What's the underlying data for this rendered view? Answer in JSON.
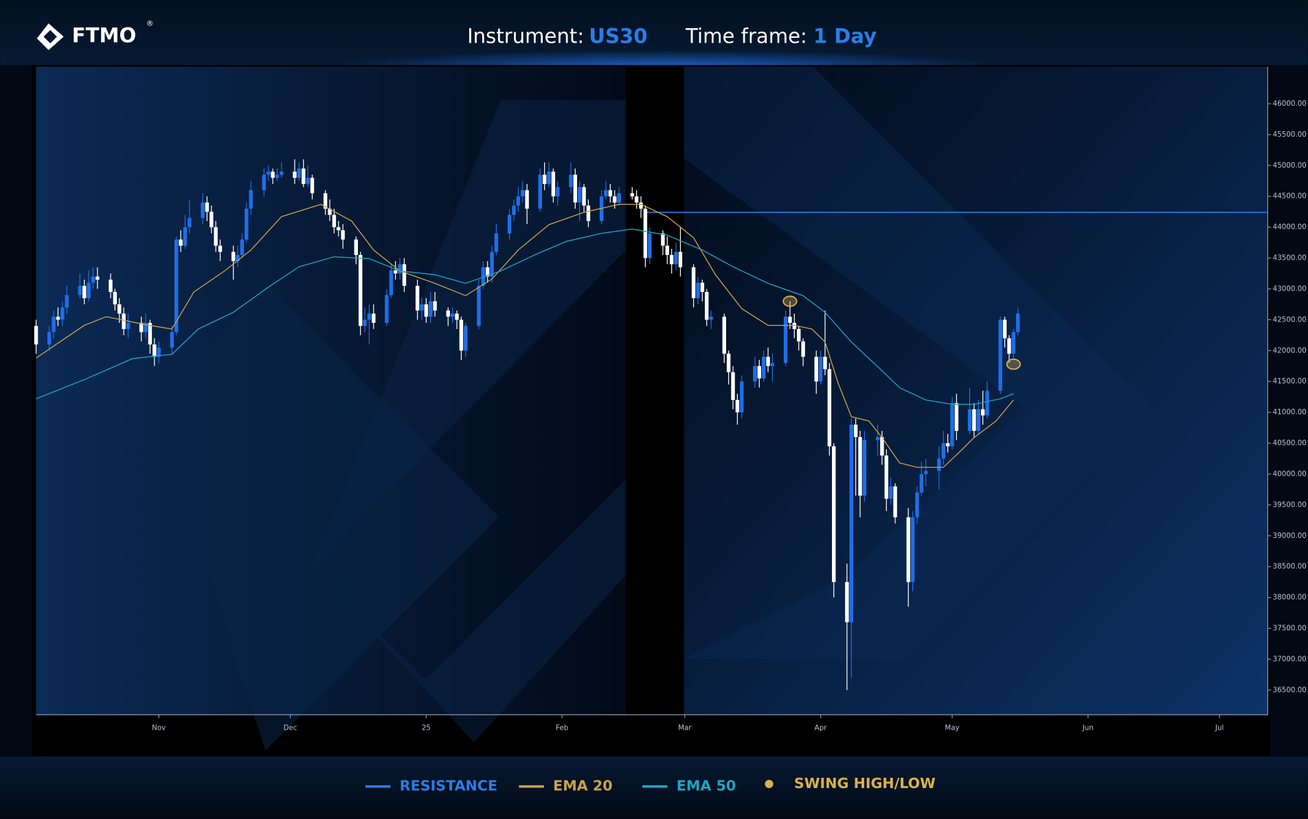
{
  "header": {
    "brand": "FTMO",
    "registered": "®",
    "instrument_label": "Instrument:",
    "instrument": "US30",
    "timeframe_label": "Time frame:",
    "timeframe": "1 Day"
  },
  "chart_data": {
    "type": "candlestick",
    "x": [
      0,
      3,
      4,
      5,
      6,
      7,
      10,
      11,
      12,
      13,
      14,
      17,
      18,
      19,
      20,
      21,
      24,
      25,
      26,
      27,
      28,
      31,
      32,
      33,
      34,
      35,
      38,
      39,
      40,
      41,
      42,
      45,
      46,
      47,
      48,
      49,
      52,
      53,
      54,
      55,
      56,
      59,
      60,
      61,
      62,
      63,
      66,
      67,
      68,
      69,
      70,
      73,
      74,
      75,
      76,
      77,
      80,
      81,
      82,
      83,
      84,
      87,
      88,
      89,
      90,
      91,
      94,
      95,
      96,
      97,
      98,
      101,
      102,
      103,
      104,
      105,
      108,
      109,
      110,
      111,
      112,
      115,
      116,
      117,
      118,
      119,
      122,
      123,
      124,
      125,
      126,
      129,
      130,
      131,
      132,
      133,
      136,
      137,
      138,
      139,
      140,
      143,
      144,
      145,
      146,
      147,
      150,
      151,
      152,
      153,
      154,
      157,
      158,
      159,
      160,
      161,
      164,
      165,
      166,
      167,
      168,
      171,
      172,
      173,
      174,
      175,
      178,
      179,
      180,
      181,
      182,
      185,
      186,
      187,
      188,
      189,
      192,
      193,
      194,
      195,
      196,
      199,
      200,
      201,
      202,
      203,
      206,
      207,
      208,
      209,
      210,
      213,
      214,
      215,
      216,
      217,
      220,
      221,
      222,
      223,
      224
    ],
    "open": [
      42400,
      42100,
      42300,
      42550,
      42500,
      42700,
      42900,
      43050,
      42850,
      43100,
      43200,
      43150,
      42950,
      42750,
      42600,
      42350,
      42450,
      42300,
      42450,
      42100,
      41900,
      42050,
      42300,
      43800,
      43700,
      44000,
      44150,
      44400,
      44250,
      44000,
      43700,
      43600,
      43450,
      43550,
      43800,
      44300,
      44600,
      44850,
      44900,
      44800,
      44850,
      44900,
      44800,
      44950,
      44700,
      44800,
      44550,
      44300,
      44200,
      44000,
      43950,
      43800,
      43550,
      42400,
      42500,
      42600,
      42450,
      42900,
      43300,
      43250,
      43400,
      43050,
      42650,
      42750,
      42550,
      42800,
      42650,
      42550,
      42600,
      42500,
      42000,
      42400,
      43050,
      43350,
      43200,
      43600,
      43900,
      44200,
      44350,
      44500,
      44600,
      44300,
      44850,
      44700,
      44900,
      44500,
      44650,
      44850,
      44400,
      44650,
      44350,
      44100,
      44500,
      44600,
      44500,
      44400,
      44550,
      44500,
      44400,
      44300,
      43500,
      43900,
      43700,
      43550,
      43400,
      43600,
      43350,
      42850,
      43100,
      42950,
      42500,
      42550,
      41950,
      41650,
      41200,
      41000,
      41500,
      41750,
      41550,
      41900,
      41750,
      41800,
      42550,
      42450,
      42350,
      42150,
      41900,
      41500,
      41900,
      41700,
      40450,
      38250,
      37600,
      40800,
      40600,
      39650,
      40550,
      40600,
      40300,
      39600,
      39800,
      39300,
      38250,
      39300,
      39700,
      40000,
      40050,
      40250,
      40500,
      40450,
      41150,
      40700,
      41050,
      40700,
      41050,
      40950,
      41350,
      42500,
      42200,
      41950,
      42300
    ],
    "high": [
      42500,
      42400,
      42650,
      42700,
      42800,
      43050,
      43250,
      43150,
      43300,
      43350,
      43350,
      43250,
      43000,
      42850,
      42700,
      42600,
      42550,
      42600,
      42500,
      42200,
      42150,
      42400,
      43850,
      43950,
      44200,
      44450,
      44550,
      44500,
      44350,
      44100,
      43800,
      43700,
      43700,
      43900,
      44400,
      44750,
      44950,
      45000,
      44950,
      44950,
      45050,
      45100,
      45050,
      45100,
      45000,
      44850,
      44600,
      44450,
      44300,
      44100,
      44050,
      43850,
      43600,
      42700,
      42750,
      42750,
      43000,
      43400,
      43450,
      43500,
      43500,
      43150,
      42850,
      42850,
      42950,
      42950,
      42700,
      42700,
      42650,
      42550,
      42450,
      43150,
      43450,
      43450,
      43700,
      44050,
      44300,
      44450,
      44650,
      44750,
      44700,
      44950,
      45050,
      45050,
      44950,
      44750,
      45050,
      44950,
      44750,
      44700,
      44450,
      44600,
      44750,
      44700,
      44600,
      44650,
      44650,
      44600,
      44500,
      44350,
      44000,
      43950,
      43850,
      43650,
      43750,
      44000,
      43400,
      43200,
      43150,
      43000,
      42650,
      42600,
      42000,
      41750,
      41300,
      41600,
      41900,
      41850,
      42000,
      42050,
      41950,
      42650,
      42800,
      42600,
      42400,
      42200,
      42000,
      42000,
      42650,
      41800,
      40500,
      38550,
      40900,
      40900,
      40700,
      40700,
      40800,
      40700,
      40400,
      39950,
      39850,
      39450,
      39400,
      39800,
      40200,
      40250,
      40450,
      40700,
      40650,
      41250,
      41300,
      41400,
      41150,
      41200,
      41350,
      41500,
      42550,
      42550,
      42250,
      42350,
      42700
    ],
    "low": [
      41950,
      42000,
      42200,
      42400,
      42400,
      42600,
      42850,
      42750,
      42800,
      43000,
      43000,
      42850,
      42650,
      42450,
      42250,
      42200,
      42150,
      42200,
      41950,
      41750,
      41800,
      41950,
      42250,
      43600,
      43650,
      43900,
      44050,
      44100,
      43900,
      43600,
      43450,
      43150,
      43350,
      43500,
      43750,
      44200,
      44500,
      44750,
      44700,
      44750,
      44800,
      44700,
      44750,
      44650,
      44650,
      44450,
      44200,
      44100,
      43900,
      43850,
      43650,
      43400,
      42250,
      42300,
      42100,
      42350,
      42400,
      42850,
      43150,
      43150,
      42950,
      42500,
      42500,
      42450,
      42450,
      42550,
      42400,
      42450,
      42350,
      41850,
      41900,
      42350,
      43000,
      43100,
      43100,
      43550,
      43800,
      44100,
      44250,
      44400,
      44050,
      44250,
      44600,
      44650,
      44400,
      44350,
      44550,
      44300,
      44100,
      44250,
      44000,
      44050,
      44450,
      44400,
      44300,
      44350,
      44450,
      44300,
      44150,
      43350,
      43400,
      43550,
      43400,
      43250,
      43300,
      43200,
      42700,
      42750,
      42800,
      42400,
      42350,
      41800,
      41450,
      41050,
      40800,
      40900,
      41400,
      41400,
      41500,
      41650,
      41500,
      41750,
      42350,
      42200,
      42000,
      41750,
      41300,
      41450,
      41600,
      40300,
      38000,
      36500,
      36700,
      39650,
      39300,
      39550,
      40300,
      40150,
      39400,
      39500,
      39200,
      37850,
      38100,
      39200,
      39650,
      39800,
      39750,
      40150,
      40350,
      40400,
      40550,
      40650,
      40600,
      40650,
      40800,
      40900,
      41300,
      42050,
      41800,
      41850,
      42250
    ],
    "close": [
      42100,
      42300,
      42550,
      42500,
      42700,
      42900,
      43050,
      42850,
      43100,
      43200,
      43150,
      42950,
      42750,
      42600,
      42350,
      42450,
      42300,
      42450,
      42100,
      41900,
      42050,
      42300,
      43800,
      43700,
      44000,
      44150,
      44400,
      44250,
      44000,
      43700,
      43600,
      43450,
      43550,
      43800,
      44300,
      44600,
      44850,
      44900,
      44800,
      44850,
      44900,
      44800,
      44950,
      44700,
      44800,
      44550,
      44300,
      44200,
      44000,
      43950,
      43800,
      43550,
      42400,
      42500,
      42600,
      42450,
      42900,
      43300,
      43250,
      43400,
      43050,
      42650,
      42750,
      42550,
      42800,
      42650,
      42550,
      42600,
      42500,
      42000,
      42400,
      43050,
      43350,
      43200,
      43600,
      43900,
      44200,
      44350,
      44500,
      44600,
      44300,
      44850,
      44700,
      44900,
      44500,
      44650,
      44850,
      44400,
      44650,
      44350,
      44100,
      44500,
      44600,
      44500,
      44400,
      44550,
      44500,
      44400,
      44300,
      43500,
      43900,
      43700,
      43550,
      43400,
      43600,
      43350,
      42850,
      43100,
      42950,
      42500,
      42550,
      41950,
      41650,
      41200,
      41000,
      41500,
      41750,
      41550,
      41900,
      41750,
      41800,
      42550,
      42450,
      42350,
      42150,
      41900,
      41500,
      41900,
      41700,
      40450,
      38250,
      37600,
      40800,
      40600,
      39650,
      40550,
      40600,
      40300,
      39600,
      39800,
      39300,
      38250,
      39300,
      39700,
      40000,
      40050,
      40250,
      40500,
      40450,
      41150,
      40700,
      41050,
      40700,
      41050,
      40950,
      41350,
      42500,
      42200,
      41950,
      42300,
      42600
    ],
    "up_color": "#1f6fe6",
    "down_color": "#ffffff",
    "xlim": [
      0,
      281
    ],
    "xticks": [
      {
        "value": 28,
        "label": "Nov"
      },
      {
        "value": 58,
        "label": "Dec"
      },
      {
        "value": 89,
        "label": "25"
      },
      {
        "value": 120,
        "label": "Feb"
      },
      {
        "value": 148,
        "label": "Mar"
      },
      {
        "value": 179,
        "label": "Apr"
      },
      {
        "value": 209,
        "label": "May"
      },
      {
        "value": 240,
        "label": "Jun"
      },
      {
        "value": 270,
        "label": "Jul"
      }
    ],
    "ylim": [
      36100,
      46600
    ],
    "yticks": [
      {
        "value": 36500,
        "label": "36500.00"
      },
      {
        "value": 37000,
        "label": "37000.00"
      },
      {
        "value": 37500,
        "label": "37500.00"
      },
      {
        "value": 38000,
        "label": "38000.00"
      },
      {
        "value": 38500,
        "label": "38500.00"
      },
      {
        "value": 39000,
        "label": "39000.00"
      },
      {
        "value": 39500,
        "label": "39500.00"
      },
      {
        "value": 40000,
        "label": "40000.00"
      },
      {
        "value": 40500,
        "label": "40500.00"
      },
      {
        "value": 41000,
        "label": "41000.00"
      },
      {
        "value": 41500,
        "label": "41500.00"
      },
      {
        "value": 42000,
        "label": "42000.00"
      },
      {
        "value": 42500,
        "label": "42500.00"
      },
      {
        "value": 43000,
        "label": "43000.00"
      },
      {
        "value": 43500,
        "label": "43500.00"
      },
      {
        "value": 44000,
        "label": "44000.00"
      },
      {
        "value": 44500,
        "label": "44500.00"
      },
      {
        "value": 45000,
        "label": "45000.00"
      },
      {
        "value": 45500,
        "label": "45500.00"
      },
      {
        "value": 46000,
        "label": "46000.00"
      }
    ],
    "grid": false,
    "resistance": {
      "name": "RESISTANCE",
      "value": 44240,
      "x_start": 139,
      "color": "#2a7de6"
    },
    "series": [
      {
        "name": "EMA 20",
        "color": "#c9a24a",
        "x": [
          0,
          11,
          16,
          25,
          31,
          36,
          43,
          49,
          56,
          65,
          72,
          77,
          83,
          91,
          98,
          104,
          110,
          117,
          125,
          133,
          138,
          144,
          150,
          155,
          161,
          167,
          173,
          177,
          180,
          183,
          186,
          190,
          193,
          197,
          201,
          207,
          211,
          214,
          219,
          223
        ],
        "values": [
          41880,
          42410,
          42550,
          42420,
          42350,
          42950,
          43290,
          43630,
          44170,
          44370,
          44100,
          43630,
          43290,
          43090,
          42890,
          43160,
          43630,
          44040,
          44240,
          44370,
          44370,
          44170,
          43830,
          43230,
          42680,
          42410,
          42410,
          42350,
          42140,
          41470,
          40930,
          40860,
          40590,
          40180,
          40110,
          40110,
          40380,
          40590,
          40860,
          41200
        ]
      },
      {
        "name": "EMA 50",
        "color": "#1ea5c4",
        "x": [
          0,
          11,
          22,
          31,
          37,
          45,
          53,
          60,
          68,
          76,
          83,
          91,
          98,
          106,
          114,
          121,
          129,
          136,
          144,
          152,
          159,
          167,
          175,
          180,
          186,
          192,
          197,
          203,
          209,
          214,
          220,
          223
        ],
        "values": [
          41220,
          41530,
          41870,
          41940,
          42350,
          42620,
          43030,
          43360,
          43520,
          43490,
          43290,
          43230,
          43090,
          43290,
          43560,
          43770,
          43900,
          43970,
          43870,
          43630,
          43360,
          43090,
          42890,
          42620,
          42140,
          41740,
          41400,
          41200,
          41130,
          41130,
          41220,
          41300
        ]
      }
    ],
    "swing_points": {
      "name": "SWING HIGH/LOW",
      "color": "#d9b04c",
      "x": [
        172,
        223
      ],
      "values": [
        42800,
        41780
      ]
    }
  }
}
